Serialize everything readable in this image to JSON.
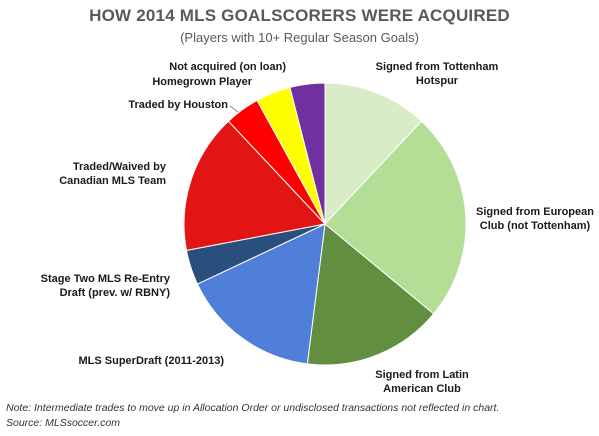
{
  "chart_data": {
    "type": "pie",
    "title": "HOW 2014 MLS GOALSCORERS WERE ACQUIRED",
    "subtitle": "(Players with 10+ Regular Season Goals)",
    "start_angle_deg": 0,
    "direction": "clockwise",
    "categories": [
      "Signed from Tottenham Hotspur",
      "Signed from European Club (not Tottenham)",
      "Signed from Latin American Club",
      "MLS SuperDraft (2011-2013)",
      "Stage Two MLS Re-Entry Draft (prev. w/ RBNY)",
      "Traded/Waived by Canadian MLS Team",
      "Traded by Houston",
      "Homegrown Player",
      "Not acquired (on loan)"
    ],
    "values": [
      3,
      6,
      4,
      4,
      1,
      4,
      1,
      1,
      1
    ],
    "colors": [
      "#d8ecc8",
      "#b4de96",
      "#628f3f",
      "#4f7fd9",
      "#2a4f7c",
      "#e31414",
      "#ff0000",
      "#ffff00",
      "#7030a0"
    ],
    "labels": [
      [
        "Signed from Tottenham",
        "Hotspur"
      ],
      [
        "Signed from European",
        "Club (not Tottenham)"
      ],
      [
        "Signed from Latin",
        "American Club"
      ],
      [
        "MLS SuperDraft (2011-2013)"
      ],
      [
        "Stage Two MLS Re-Entry",
        "Draft (prev. w/ RBNY)"
      ],
      [
        "Traded/Waived by",
        "Canadian MLS Team"
      ],
      [
        "Traded by Houston"
      ],
      [
        "Homegrown Player"
      ],
      [
        "Not acquired (on loan)"
      ]
    ]
  },
  "footnote": {
    "note": "Note: Intermediate trades to move up in Allocation Order or undisclosed transactions not reflected in chart.",
    "source": "Source: MLSsoccer.com"
  }
}
